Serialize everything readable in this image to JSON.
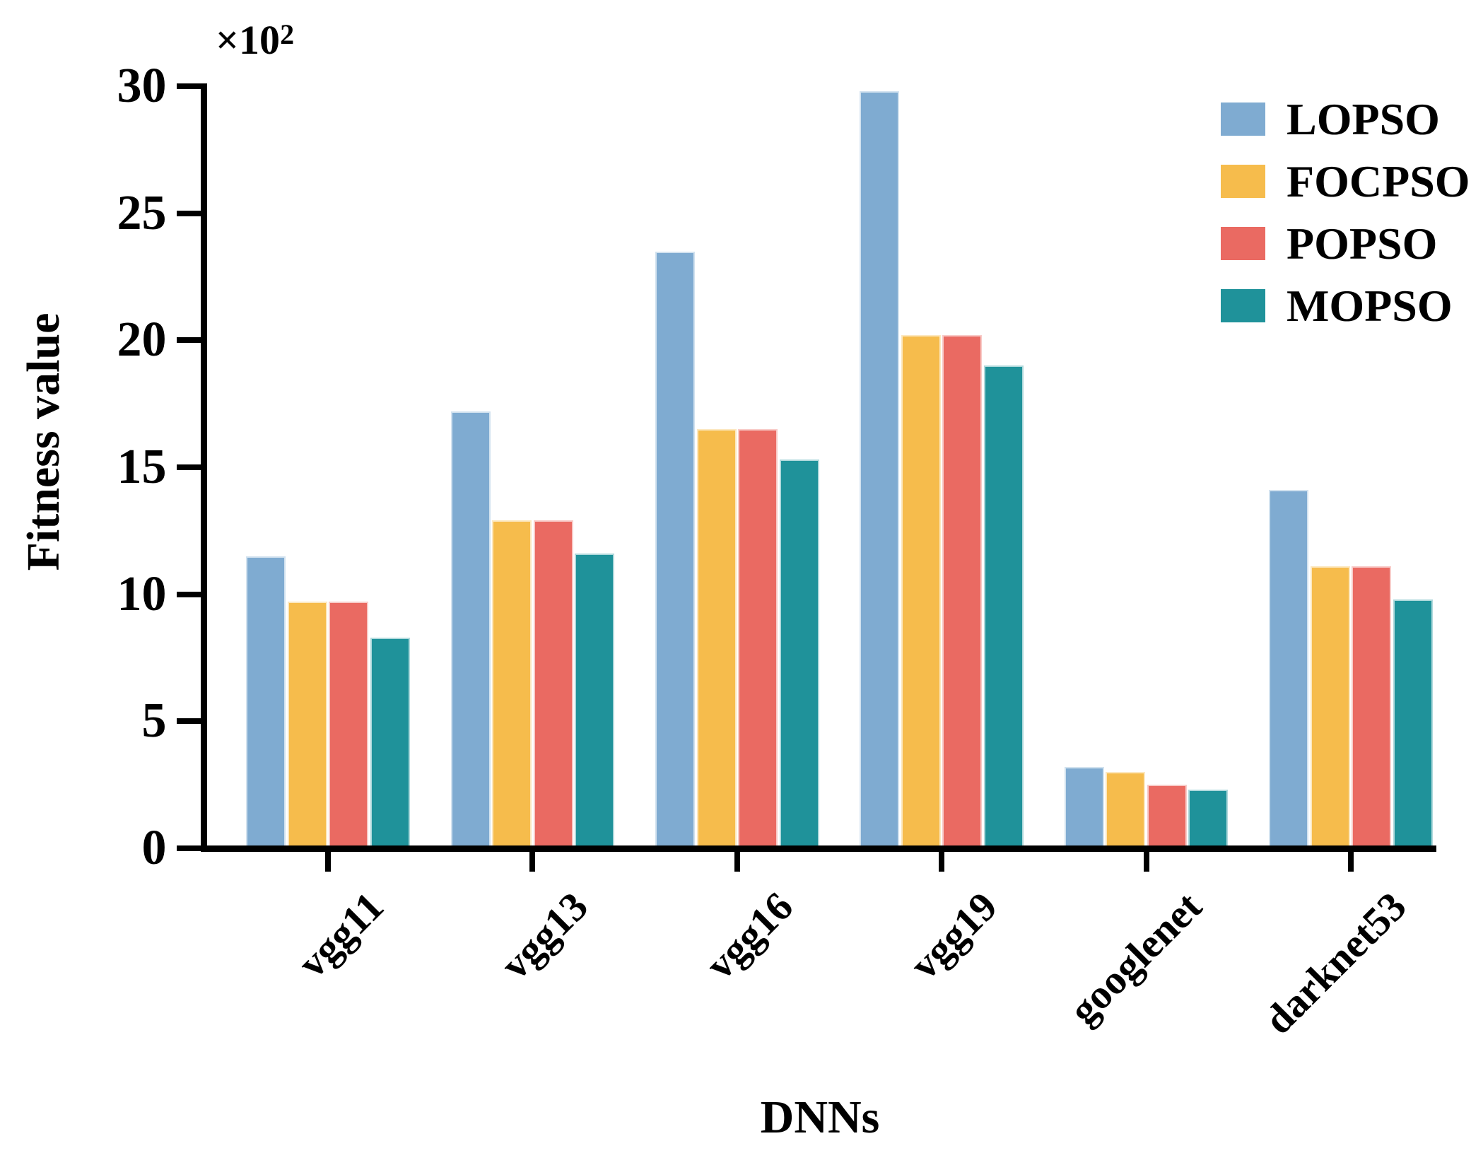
{
  "chart_data": {
    "type": "bar",
    "title": "",
    "xlabel": "DNNs",
    "ylabel": "Fitness value",
    "y_multiplier_base": "×10",
    "y_multiplier_exp": "2",
    "categories": [
      "vgg11",
      "vgg13",
      "vgg16",
      "vgg19",
      "googlenet",
      "darknet53"
    ],
    "series": [
      {
        "name": "LOPSO",
        "color": "#7fabd1",
        "values": [
          11.5,
          17.2,
          23.5,
          29.8,
          3.2,
          14.1
        ]
      },
      {
        "name": "FOCPSO",
        "color": "#f6bc4c",
        "values": [
          9.7,
          12.9,
          16.5,
          20.2,
          3.0,
          11.1
        ]
      },
      {
        "name": "POPSO",
        "color": "#ea6a62",
        "values": [
          9.7,
          12.9,
          16.5,
          20.2,
          2.5,
          11.1
        ]
      },
      {
        "name": "MOPSO",
        "color": "#1f929a",
        "values": [
          8.3,
          11.6,
          15.3,
          19.0,
          2.3,
          9.8
        ]
      }
    ],
    "ylim": [
      0,
      30
    ],
    "yticks": [
      0,
      5,
      10,
      15,
      20,
      25,
      30
    ],
    "axis_color": "#000000",
    "legend_position": "upper right",
    "grid": false
  }
}
